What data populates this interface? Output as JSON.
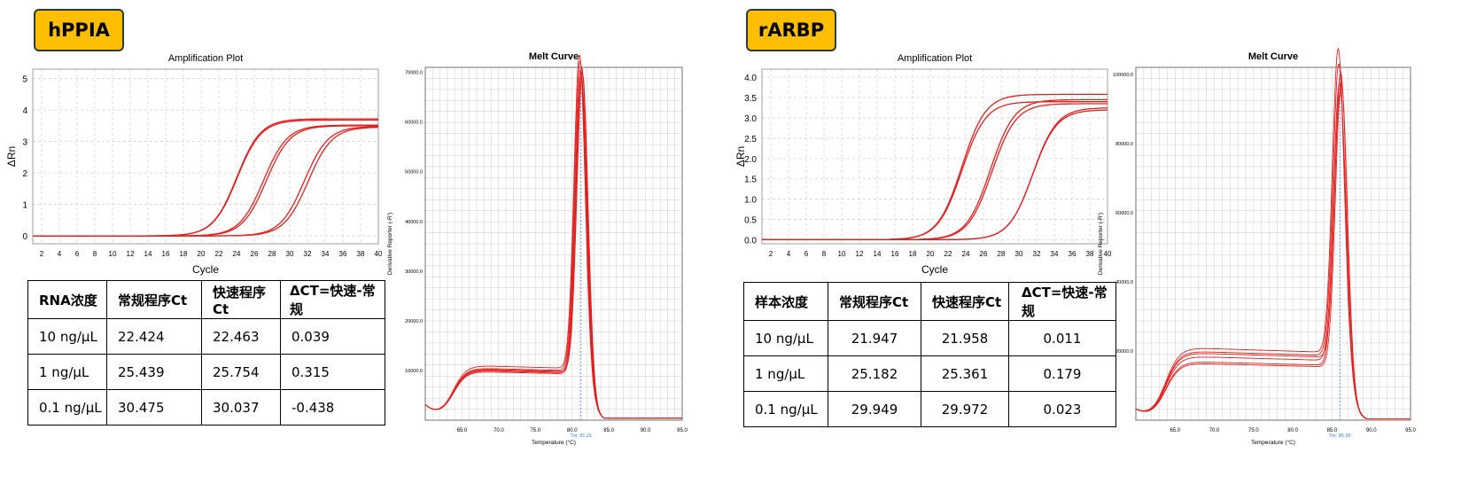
{
  "panels": [
    {
      "gene": "hPPIA",
      "amp": {
        "title": "Amplification Plot",
        "xlabel": "Cycle",
        "ylabel": "ΔRn",
        "xticks": [
          2,
          4,
          6,
          8,
          10,
          12,
          14,
          16,
          18,
          20,
          22,
          24,
          26,
          28,
          30,
          32,
          34,
          36,
          38,
          40
        ],
        "yticks": [
          "0",
          "1",
          "2",
          "3",
          "4",
          "5"
        ]
      },
      "melt": {
        "title": "Melt Curve",
        "xlabel": "Temperature (°C)",
        "ylabel": "Derivative Reporter (-R')",
        "xticks": [
          "65.0",
          "70.0",
          "75.0",
          "80.0",
          "85.0",
          "90.0",
          "95.0"
        ],
        "yticks": [
          "10000.0",
          "20000.0",
          "30000.0",
          "40000.0",
          "50000.0",
          "60000.0",
          "70000.0"
        ],
        "tm_label": "Tm: 81.21"
      },
      "table": {
        "headers": [
          "RNA浓度",
          "常规程序Ct",
          "快速程序Ct",
          "ΔCT=快速-常规"
        ],
        "rows": [
          [
            "10 ng/μL",
            "22.424",
            "22.463",
            "0.039"
          ],
          [
            "1 ng/μL",
            "25.439",
            "25.754",
            "0.315"
          ],
          [
            "0.1 ng/μL",
            "30.475",
            "30.037",
            "-0.438"
          ]
        ]
      }
    },
    {
      "gene": "rARBP",
      "amp": {
        "title": "Amplification Plot",
        "xlabel": "Cycle",
        "ylabel": "ΔRn",
        "xticks": [
          2,
          4,
          6,
          8,
          10,
          12,
          14,
          16,
          18,
          20,
          22,
          24,
          26,
          28,
          30,
          32,
          34,
          36,
          38,
          40
        ],
        "yticks": [
          "0.0",
          "0.5",
          "1.0",
          "1.5",
          "2.0",
          "2.5",
          "3.0",
          "3.5",
          "4.0"
        ]
      },
      "melt": {
        "title": "Melt Curve",
        "xlabel": "Temperature (°C)",
        "ylabel": "Derivative Reporter (-R')",
        "xticks": [
          "65.0",
          "70.0",
          "75.0",
          "80.0",
          "85.0",
          "90.0",
          "95.0"
        ],
        "yticks": [
          "20000.0",
          "40000.0",
          "60000.0",
          "80000.0",
          "100000.0"
        ],
        "tm_label": "Tm: 85.99"
      },
      "table": {
        "headers": [
          "样本浓度",
          "常规程序Ct",
          "快速程序Ct",
          "ΔCT=快速-常规"
        ],
        "rows": [
          [
            "10 ng/μL",
            "21.947",
            "21.958",
            "0.011"
          ],
          [
            "1 ng/μL",
            "25.182",
            "25.361",
            "0.179"
          ],
          [
            "0.1 ng/μL",
            "29.949",
            "29.972",
            "0.023"
          ]
        ]
      }
    }
  ],
  "colors": {
    "curve": "#e0201f",
    "badge": "#ffbf00",
    "tm_line": "#3b7dd8",
    "grid": "#cccccc"
  },
  "chart_data": [
    {
      "type": "line",
      "title": "Amplification Plot",
      "xlabel": "Cycle",
      "ylabel": "ΔRn",
      "xlim": [
        1,
        40
      ],
      "ylim": [
        -0.25,
        5.3
      ],
      "series": [
        {
          "values_at": "Ct",
          "ct": 22.424,
          "plateau": 3.72
        },
        {
          "ct": 22.463,
          "plateau": 3.68
        },
        {
          "ct": 25.439,
          "plateau": 3.52
        },
        {
          "ct": 25.754,
          "plateau": 3.5
        },
        {
          "ct": 30.475,
          "plateau": 3.46
        },
        {
          "ct": 30.037,
          "plateau": 3.48
        }
      ]
    },
    {
      "type": "line",
      "title": "Melt Curve",
      "xlabel": "Temperature (°C)",
      "ylabel": "Derivative Reporter (-R')",
      "xlim": [
        60,
        95
      ],
      "ylim": [
        0,
        71000
      ],
      "tm": 81.21,
      "series": [
        {
          "peak": 70000,
          "shoulder": 11000
        },
        {
          "peak": 69000,
          "shoulder": 10500
        },
        {
          "peak": 67500,
          "shoulder": 10000
        },
        {
          "peak": 66500,
          "shoulder": 10200
        },
        {
          "peak": 68000,
          "shoulder": 9800
        },
        {
          "peak": 67000,
          "shoulder": 10300
        }
      ]
    },
    {
      "type": "line",
      "title": "Amplification Plot",
      "xlabel": "Cycle",
      "ylabel": "ΔRn",
      "xlim": [
        1,
        40
      ],
      "ylim": [
        -0.1,
        4.2
      ],
      "series": [
        {
          "ct": 21.947,
          "plateau": 3.58
        },
        {
          "ct": 21.958,
          "plateau": 3.4
        },
        {
          "ct": 25.182,
          "plateau": 3.45
        },
        {
          "ct": 25.361,
          "plateau": 3.35
        },
        {
          "ct": 29.949,
          "plateau": 3.2
        },
        {
          "ct": 29.972,
          "plateau": 3.25
        }
      ]
    },
    {
      "type": "line",
      "title": "Melt Curve",
      "xlabel": "Temperature (°C)",
      "ylabel": "Derivative Reporter (-R')",
      "xlim": [
        60,
        95
      ],
      "ylim": [
        0,
        102000
      ],
      "tm": 85.99,
      "series": [
        {
          "peak": 101000,
          "shoulder": 21000
        },
        {
          "peak": 97000,
          "shoulder": 20000
        },
        {
          "peak": 92000,
          "shoulder": 18500
        },
        {
          "peak": 90000,
          "shoulder": 17000
        },
        {
          "peak": 95000,
          "shoulder": 19500
        },
        {
          "peak": 93000,
          "shoulder": 16500
        }
      ]
    }
  ]
}
